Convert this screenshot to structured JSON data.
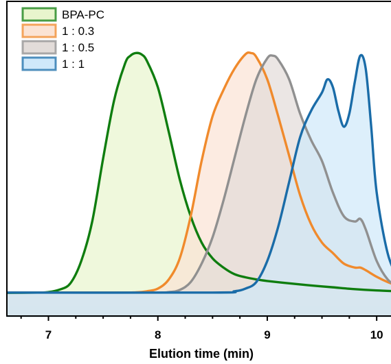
{
  "chart_data": {
    "type": "area",
    "title": "",
    "xlabel": "Elution time (min)",
    "ylabel": "",
    "xlim": [
      6.62,
      10.2
    ],
    "ylim": [
      0,
      1
    ],
    "x_ticks": [
      7,
      8,
      9,
      10
    ],
    "x_tick_labels": [
      "7",
      "8",
      "9",
      "10"
    ],
    "grid": false,
    "legend_position": "top-left",
    "baseline": 0.05,
    "series": [
      {
        "name": "BPA-PC",
        "line_color": "#0f7d0f",
        "fill_color": "#e8f5cd",
        "x": [
          6.62,
          6.9,
          7.0,
          7.1,
          7.2,
          7.3,
          7.4,
          7.5,
          7.6,
          7.7,
          7.75,
          7.8,
          7.85,
          7.9,
          8.0,
          8.1,
          8.2,
          8.3,
          8.4,
          8.5,
          8.6,
          8.7,
          8.8,
          8.9,
          9.0,
          9.2,
          9.4,
          9.6,
          9.8,
          10.0,
          10.2
        ],
        "y": [
          0.049,
          0.05,
          0.052,
          0.061,
          0.085,
          0.17,
          0.32,
          0.56,
          0.78,
          0.92,
          0.95,
          0.96,
          0.955,
          0.93,
          0.83,
          0.66,
          0.48,
          0.34,
          0.24,
          0.18,
          0.145,
          0.12,
          0.108,
          0.1,
          0.094,
          0.085,
          0.077,
          0.07,
          0.063,
          0.058,
          0.055
        ]
      },
      {
        "name": "1 : 0.3",
        "line_color": "#f08a2c",
        "fill_color": "#fbe3d4",
        "x": [
          6.62,
          7.6,
          7.8,
          7.9,
          8.0,
          8.1,
          8.2,
          8.3,
          8.4,
          8.5,
          8.6,
          8.7,
          8.8,
          8.85,
          8.9,
          9.0,
          9.1,
          9.2,
          9.3,
          9.4,
          9.5,
          9.6,
          9.7,
          9.8,
          9.85,
          9.9,
          10.0,
          10.1,
          10.2
        ],
        "y": [
          0.05,
          0.05,
          0.051,
          0.055,
          0.065,
          0.1,
          0.18,
          0.34,
          0.55,
          0.72,
          0.82,
          0.9,
          0.955,
          0.96,
          0.945,
          0.86,
          0.72,
          0.57,
          0.42,
          0.31,
          0.24,
          0.2,
          0.16,
          0.145,
          0.145,
          0.135,
          0.11,
          0.09,
          0.075
        ]
      },
      {
        "name": "1 : 0.5",
        "line_color": "#909090",
        "fill_color": "#e2dcd9",
        "x": [
          6.62,
          7.9,
          8.1,
          8.2,
          8.3,
          8.4,
          8.5,
          8.6,
          8.7,
          8.8,
          8.9,
          9.0,
          9.05,
          9.1,
          9.2,
          9.3,
          9.4,
          9.5,
          9.6,
          9.7,
          9.8,
          9.85,
          9.9,
          10.0,
          10.1,
          10.2
        ],
        "y": [
          0.05,
          0.05,
          0.052,
          0.06,
          0.09,
          0.16,
          0.26,
          0.4,
          0.56,
          0.72,
          0.86,
          0.94,
          0.95,
          0.935,
          0.86,
          0.73,
          0.63,
          0.55,
          0.43,
          0.34,
          0.32,
          0.33,
          0.29,
          0.17,
          0.1,
          0.07
        ]
      },
      {
        "name": "1 : 1",
        "line_color": "#1a6ca8",
        "fill_color": "#cfe8fa",
        "x": [
          6.62,
          8.5,
          8.7,
          8.8,
          8.9,
          9.0,
          9.1,
          9.2,
          9.3,
          9.4,
          9.5,
          9.55,
          9.6,
          9.65,
          9.7,
          9.75,
          9.8,
          9.85,
          9.9,
          9.95,
          10.0,
          10.1,
          10.2
        ],
        "y": [
          0.05,
          0.05,
          0.055,
          0.065,
          0.09,
          0.17,
          0.3,
          0.47,
          0.64,
          0.74,
          0.81,
          0.86,
          0.83,
          0.74,
          0.68,
          0.73,
          0.85,
          0.95,
          0.9,
          0.68,
          0.43,
          0.2,
          0.1
        ]
      }
    ]
  }
}
